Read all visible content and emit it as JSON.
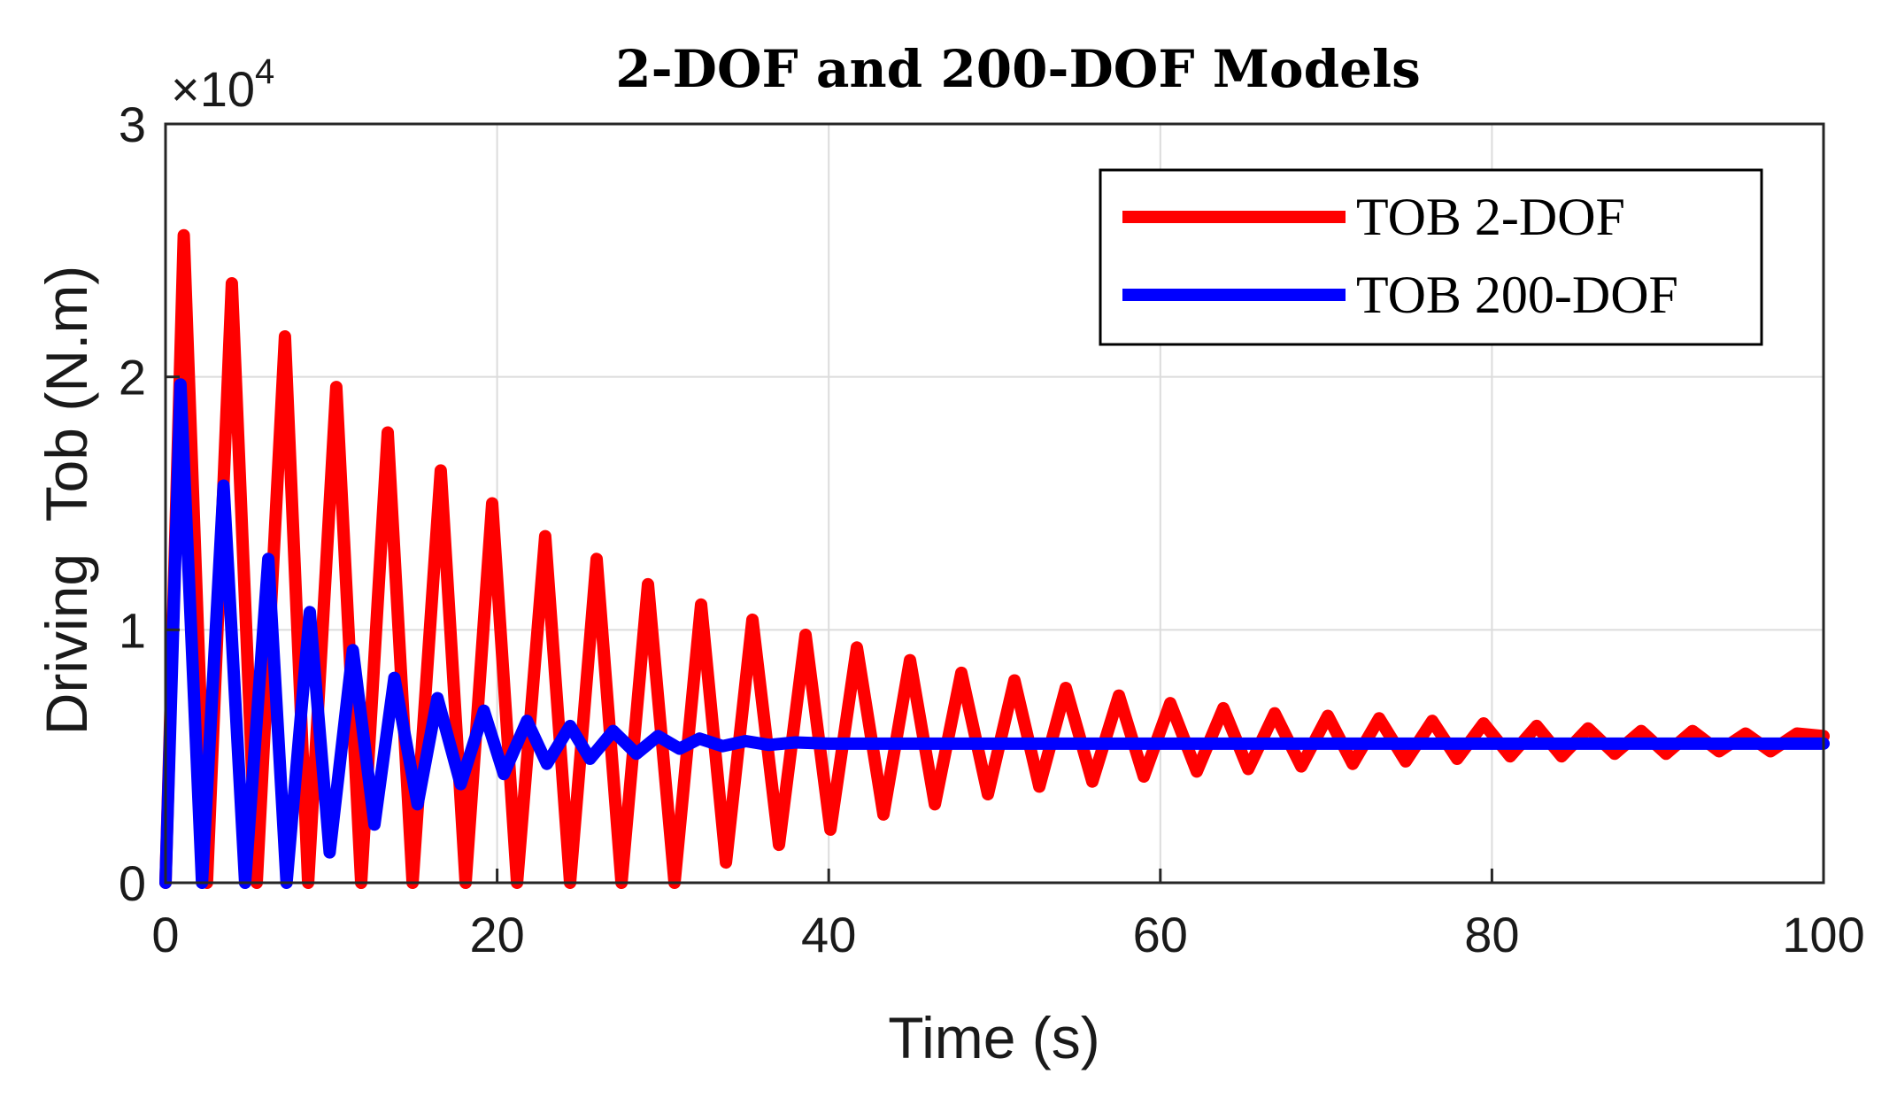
{
  "chart_data": {
    "type": "line",
    "title": "2-DOF and 200-DOF Models",
    "xlabel": "Time (s)",
    "ylabel": "Driving  Tob (N.m)",
    "y_multiplier": "×10",
    "y_multiplier_exp": "4",
    "xlim": [
      0,
      100
    ],
    "ylim": [
      0,
      30000
    ],
    "xticks": [
      0,
      20,
      40,
      60,
      80,
      100
    ],
    "xtick_labels": [
      "0",
      "20",
      "40",
      "60",
      "80",
      "100"
    ],
    "yticks": [
      0,
      10000,
      20000,
      30000
    ],
    "ytick_labels": [
      "0",
      "1",
      "2",
      "3"
    ],
    "grid": true,
    "legend_position": "top-right",
    "series": [
      {
        "name": "TOB 2-DOF",
        "color": "#ff0000",
        "x": [
          0,
          1.1,
          2.5,
          4.0,
          5.5,
          7.2,
          8.6,
          10.3,
          11.8,
          13.4,
          14.9,
          16.6,
          18.1,
          19.7,
          21.2,
          22.9,
          24.4,
          26.0,
          27.5,
          29.1,
          30.7,
          32.3,
          33.8,
          35.4,
          37.0,
          38.6,
          40.1,
          41.7,
          43.3,
          44.9,
          46.4,
          48.0,
          49.6,
          51.2,
          52.7,
          54.3,
          55.9,
          57.5,
          59.0,
          60.6,
          62.2,
          63.8,
          65.3,
          66.9,
          68.5,
          70.1,
          71.6,
          73.2,
          74.8,
          76.4,
          77.9,
          79.5,
          81.1,
          82.7,
          84.2,
          85.8,
          87.4,
          89.0,
          90.5,
          92.1,
          93.7,
          95.3,
          96.8,
          98.4,
          100
        ],
        "values": [
          0,
          25600,
          0,
          23700,
          0,
          21600,
          0,
          19600,
          0,
          17800,
          0,
          16300,
          0,
          15000,
          0,
          13700,
          0,
          12800,
          0,
          11800,
          0,
          11000,
          800,
          10400,
          1500,
          9800,
          2100,
          9300,
          2700,
          8800,
          3100,
          8300,
          3500,
          8000,
          3800,
          7700,
          4000,
          7400,
          4200,
          7100,
          4400,
          6900,
          4500,
          6700,
          4600,
          6600,
          4700,
          6500,
          4800,
          6400,
          4900,
          6300,
          5000,
          6200,
          5000,
          6100,
          5100,
          6000,
          5100,
          6000,
          5200,
          5900,
          5200,
          5900,
          5800
        ]
      },
      {
        "name": "TOB 200-DOF",
        "color": "#0000ff",
        "x": [
          0,
          0.9,
          2.2,
          3.5,
          4.8,
          6.2,
          7.3,
          8.7,
          9.9,
          11.3,
          12.6,
          13.8,
          15.2,
          16.4,
          17.8,
          19.2,
          20.4,
          21.8,
          23.0,
          24.4,
          25.6,
          27.0,
          28.4,
          29.7,
          31.0,
          32.2,
          33.6,
          35.0,
          36.4,
          38.0,
          40.0,
          45.0,
          50.0,
          60.0,
          70.0,
          80.0,
          90.0,
          100.0
        ],
        "values": [
          0,
          19700,
          0,
          15700,
          0,
          12800,
          0,
          10700,
          1200,
          9200,
          2300,
          8100,
          3100,
          7300,
          3900,
          6800,
          4300,
          6400,
          4700,
          6200,
          4900,
          6000,
          5100,
          5800,
          5300,
          5700,
          5400,
          5600,
          5450,
          5550,
          5500,
          5500,
          5500,
          5500,
          5500,
          5500,
          5500,
          5500
        ]
      }
    ]
  }
}
